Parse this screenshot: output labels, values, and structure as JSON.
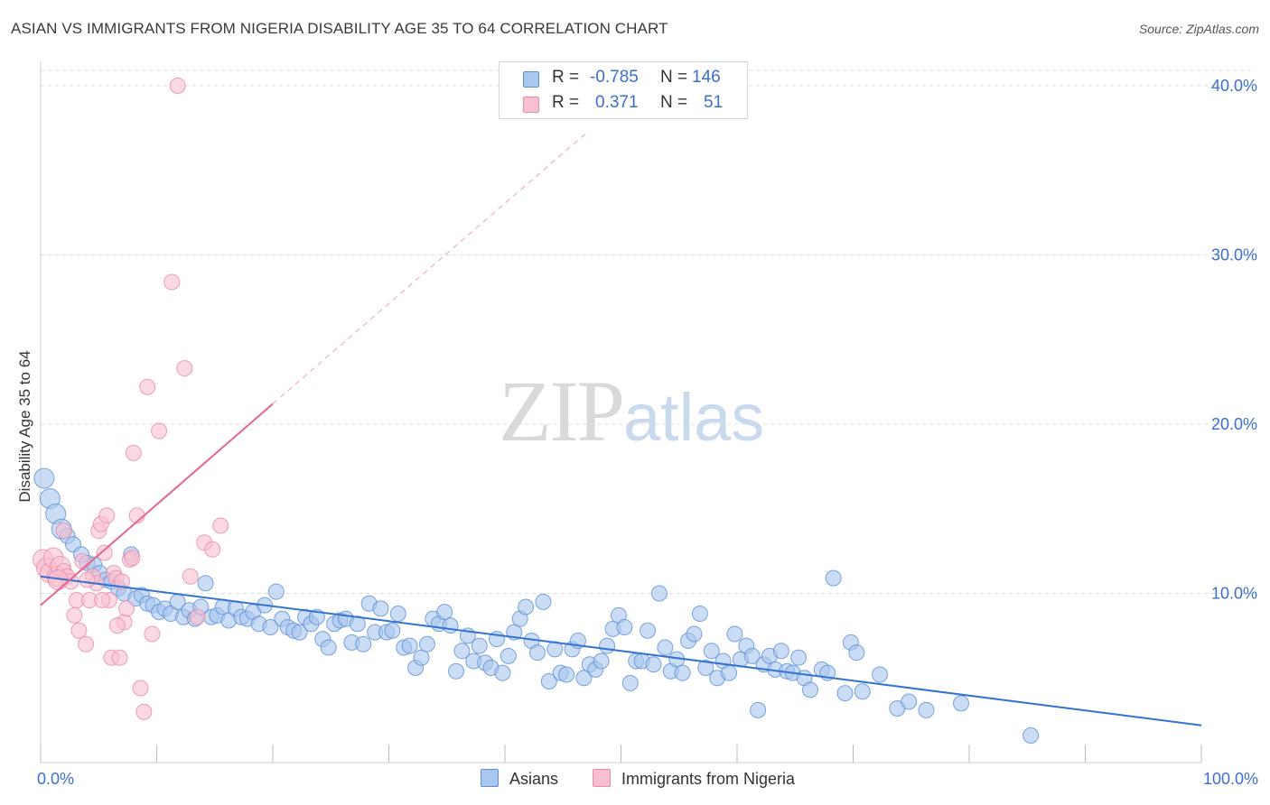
{
  "title": "ASIAN VS IMMIGRANTS FROM NIGERIA DISABILITY AGE 35 TO 64 CORRELATION CHART",
  "source": "Source: ZipAtlas.com",
  "watermark": {
    "zip": "ZIP",
    "atlas": "atlas"
  },
  "legend": {
    "rows": [
      {
        "r_label": "R =",
        "r_value": "-0.785",
        "n_label": "N =",
        "n_value": "146"
      },
      {
        "r_label": "R =",
        "r_value": "0.371",
        "n_label": "N =",
        "n_value": "51"
      }
    ]
  },
  "bottom_legend": {
    "series1": "Asians",
    "series2": "Immigrants from Nigeria"
  },
  "colors": {
    "asian_fill": "#a9c7ef",
    "asian_stroke": "#5b8fd6",
    "asian_line": "#3373d0",
    "nigeria_fill": "#f8bfd0",
    "nigeria_stroke": "#e98aa8",
    "nigeria_line": "#e2668f",
    "grid": "#dcdcdc",
    "tick_label": "#3a6fcf"
  },
  "chart_data": {
    "type": "scatter",
    "ylabel": "Disability Age 35 to 64",
    "xlim": [
      0,
      100
    ],
    "ylim": [
      0,
      40
    ],
    "x_tick_labels": [
      "0.0%",
      "100.0%"
    ],
    "y_ticks": [
      10,
      20,
      30,
      40
    ],
    "y_tick_labels": [
      "10.0%",
      "20.0%",
      "30.0%",
      "40.0%"
    ],
    "grid": "horizontal dashed",
    "series": [
      {
        "name": "Asians",
        "trend": {
          "x": [
            0,
            100
          ],
          "y": [
            11.0,
            2.2
          ],
          "style": "solid"
        },
        "points": [
          [
            0.3,
            16.8
          ],
          [
            0.8,
            15.6
          ],
          [
            1.3,
            14.7
          ],
          [
            1.8,
            13.8
          ],
          [
            2.3,
            13.4
          ],
          [
            2.8,
            12.9
          ],
          [
            3.5,
            12.3
          ],
          [
            4.0,
            11.8
          ],
          [
            4.6,
            11.7
          ],
          [
            5.1,
            11.2
          ],
          [
            5.6,
            10.8
          ],
          [
            6.1,
            10.7
          ],
          [
            6.7,
            10.3
          ],
          [
            7.2,
            10.0
          ],
          [
            7.8,
            12.3
          ],
          [
            8.2,
            9.7
          ],
          [
            8.7,
            9.9
          ],
          [
            9.2,
            9.4
          ],
          [
            9.7,
            9.3
          ],
          [
            10.2,
            8.9
          ],
          [
            10.7,
            9.1
          ],
          [
            11.2,
            8.8
          ],
          [
            11.8,
            9.5
          ],
          [
            12.3,
            8.6
          ],
          [
            12.8,
            9.0
          ],
          [
            13.3,
            8.5
          ],
          [
            13.8,
            9.2
          ],
          [
            14.2,
            10.6
          ],
          [
            14.7,
            8.6
          ],
          [
            15.2,
            8.7
          ],
          [
            15.7,
            9.2
          ],
          [
            16.2,
            8.4
          ],
          [
            16.8,
            9.1
          ],
          [
            17.3,
            8.6
          ],
          [
            17.8,
            8.5
          ],
          [
            18.3,
            8.9
          ],
          [
            18.8,
            8.2
          ],
          [
            19.3,
            9.3
          ],
          [
            19.8,
            8.0
          ],
          [
            20.3,
            10.1
          ],
          [
            20.8,
            8.5
          ],
          [
            21.3,
            8.0
          ],
          [
            21.8,
            7.8
          ],
          [
            22.3,
            7.7
          ],
          [
            22.8,
            8.6
          ],
          [
            23.3,
            8.2
          ],
          [
            23.8,
            8.6
          ],
          [
            24.3,
            7.3
          ],
          [
            24.8,
            6.8
          ],
          [
            25.3,
            8.2
          ],
          [
            25.8,
            8.4
          ],
          [
            26.3,
            8.5
          ],
          [
            26.8,
            7.1
          ],
          [
            27.3,
            8.2
          ],
          [
            27.8,
            7.0
          ],
          [
            28.3,
            9.4
          ],
          [
            28.8,
            7.7
          ],
          [
            29.3,
            9.1
          ],
          [
            29.8,
            7.7
          ],
          [
            30.3,
            7.8
          ],
          [
            30.8,
            8.8
          ],
          [
            31.3,
            6.8
          ],
          [
            31.8,
            6.9
          ],
          [
            32.3,
            5.6
          ],
          [
            32.8,
            6.2
          ],
          [
            33.3,
            7.0
          ],
          [
            33.8,
            8.5
          ],
          [
            34.3,
            8.2
          ],
          [
            34.8,
            8.9
          ],
          [
            35.3,
            8.1
          ],
          [
            35.8,
            5.4
          ],
          [
            36.3,
            6.6
          ],
          [
            36.8,
            7.5
          ],
          [
            37.3,
            6.0
          ],
          [
            37.8,
            6.9
          ],
          [
            38.3,
            5.9
          ],
          [
            38.8,
            5.6
          ],
          [
            39.3,
            7.3
          ],
          [
            39.8,
            5.3
          ],
          [
            40.3,
            6.3
          ],
          [
            40.8,
            7.7
          ],
          [
            41.3,
            8.5
          ],
          [
            41.8,
            9.2
          ],
          [
            42.3,
            7.2
          ],
          [
            42.8,
            6.5
          ],
          [
            43.3,
            9.5
          ],
          [
            43.8,
            4.8
          ],
          [
            44.3,
            6.7
          ],
          [
            44.8,
            5.3
          ],
          [
            45.3,
            5.2
          ],
          [
            45.8,
            6.7
          ],
          [
            46.3,
            7.2
          ],
          [
            46.8,
            5.0
          ],
          [
            47.3,
            5.8
          ],
          [
            47.8,
            5.5
          ],
          [
            48.3,
            6.0
          ],
          [
            48.8,
            6.9
          ],
          [
            49.3,
            7.9
          ],
          [
            49.8,
            8.7
          ],
          [
            50.3,
            8.0
          ],
          [
            50.8,
            4.7
          ],
          [
            51.3,
            6.0
          ],
          [
            51.8,
            6.0
          ],
          [
            52.3,
            7.8
          ],
          [
            52.8,
            5.8
          ],
          [
            53.3,
            10.0
          ],
          [
            53.8,
            6.8
          ],
          [
            54.3,
            5.4
          ],
          [
            54.8,
            6.1
          ],
          [
            55.3,
            5.3
          ],
          [
            55.8,
            7.2
          ],
          [
            56.3,
            7.6
          ],
          [
            56.8,
            8.8
          ],
          [
            57.3,
            5.6
          ],
          [
            57.8,
            6.6
          ],
          [
            58.3,
            5.0
          ],
          [
            58.8,
            6.0
          ],
          [
            59.3,
            5.3
          ],
          [
            59.8,
            7.6
          ],
          [
            60.3,
            6.1
          ],
          [
            60.8,
            6.9
          ],
          [
            61.3,
            6.3
          ],
          [
            61.8,
            3.1
          ],
          [
            62.3,
            5.8
          ],
          [
            62.8,
            6.3
          ],
          [
            63.3,
            5.5
          ],
          [
            63.8,
            6.6
          ],
          [
            64.3,
            5.4
          ],
          [
            64.8,
            5.3
          ],
          [
            65.3,
            6.2
          ],
          [
            65.8,
            5.0
          ],
          [
            66.3,
            4.3
          ],
          [
            67.3,
            5.5
          ],
          [
            67.8,
            5.3
          ],
          [
            68.3,
            10.9
          ],
          [
            69.3,
            4.1
          ],
          [
            69.8,
            7.1
          ],
          [
            70.3,
            6.5
          ],
          [
            70.8,
            4.2
          ],
          [
            72.3,
            5.2
          ],
          [
            73.8,
            3.2
          ],
          [
            74.8,
            3.6
          ],
          [
            76.3,
            3.1
          ],
          [
            79.3,
            3.5
          ],
          [
            85.3,
            1.6
          ]
        ]
      },
      {
        "name": "Immigrants from Nigeria",
        "trend": {
          "x": [
            0,
            20
          ],
          "y": [
            9.3,
            21.2
          ],
          "style": "solid",
          "extended": {
            "x": [
              20,
              47
            ],
            "y": [
              21.2,
              37.2
            ],
            "style": "dashed"
          }
        },
        "points": [
          [
            0.2,
            12.0
          ],
          [
            0.5,
            11.5
          ],
          [
            0.8,
            11.2
          ],
          [
            1.1,
            12.1
          ],
          [
            1.4,
            11.0
          ],
          [
            1.7,
            11.6
          ],
          [
            2.0,
            11.3
          ],
          [
            2.3,
            11.0
          ],
          [
            2.6,
            10.7
          ],
          [
            2.9,
            8.7
          ],
          [
            3.1,
            9.6
          ],
          [
            3.3,
            7.8
          ],
          [
            3.6,
            11.9
          ],
          [
            3.9,
            7.0
          ],
          [
            4.2,
            9.6
          ],
          [
            4.5,
            11.0
          ],
          [
            4.8,
            10.6
          ],
          [
            5.0,
            13.7
          ],
          [
            5.2,
            14.1
          ],
          [
            5.5,
            12.4
          ],
          [
            5.7,
            14.6
          ],
          [
            5.9,
            9.6
          ],
          [
            6.1,
            6.2
          ],
          [
            6.3,
            11.2
          ],
          [
            6.5,
            10.9
          ],
          [
            6.8,
            6.2
          ],
          [
            7.0,
            10.7
          ],
          [
            7.2,
            8.3
          ],
          [
            7.4,
            9.1
          ],
          [
            7.7,
            12.0
          ],
          [
            8.0,
            18.3
          ],
          [
            8.3,
            14.6
          ],
          [
            8.6,
            4.4
          ],
          [
            8.9,
            3.0
          ],
          [
            9.2,
            22.2
          ],
          [
            9.6,
            7.6
          ],
          [
            10.2,
            19.6
          ],
          [
            11.3,
            28.4
          ],
          [
            11.8,
            40.0
          ],
          [
            12.4,
            23.3
          ],
          [
            12.9,
            11.0
          ],
          [
            13.5,
            8.6
          ],
          [
            14.1,
            13.0
          ],
          [
            14.8,
            12.6
          ],
          [
            15.5,
            14.0
          ],
          [
            5.3,
            9.6
          ],
          [
            6.6,
            8.1
          ],
          [
            7.9,
            12.1
          ],
          [
            2.0,
            13.7
          ],
          [
            4.0,
            10.8
          ],
          [
            1.5,
            10.8
          ]
        ]
      }
    ]
  }
}
